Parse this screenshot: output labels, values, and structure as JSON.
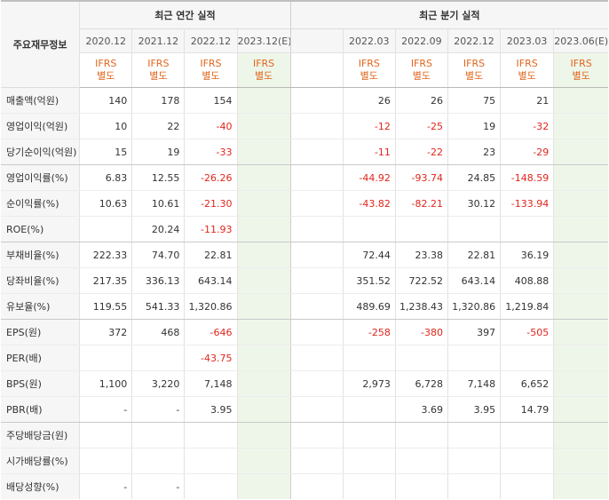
{
  "header": {
    "main_label": "주요재무정보",
    "annual_title": "최근 연간 실적",
    "quarter_title": "최근 분기 실적",
    "annual_periods": [
      "2020.12",
      "2021.12",
      "2022.12",
      "2023.12(E)"
    ],
    "quarter_periods": [
      "",
      "2022.03",
      "2022.09",
      "2022.12",
      "2023.03",
      "2023.06(E)"
    ],
    "basis_line1": "IFRS",
    "basis_line2": "별도"
  },
  "rows": [
    {
      "label": "매출액(억원)",
      "annual": [
        "140",
        "178",
        "154",
        ""
      ],
      "quarter": [
        "",
        "26",
        "26",
        "75",
        "21",
        ""
      ]
    },
    {
      "label": "영업이익(억원)",
      "annual": [
        "10",
        "22",
        "-40",
        ""
      ],
      "quarter": [
        "",
        "-12",
        "-25",
        "19",
        "-32",
        ""
      ]
    },
    {
      "label": "당기순이익(억원)",
      "annual": [
        "15",
        "19",
        "-33",
        ""
      ],
      "quarter": [
        "",
        "-11",
        "-22",
        "23",
        "-29",
        ""
      ]
    },
    {
      "label": "영업이익률(%)",
      "annual": [
        "6.83",
        "12.55",
        "-26.26",
        ""
      ],
      "quarter": [
        "",
        "-44.92",
        "-93.74",
        "24.85",
        "-148.59",
        ""
      ]
    },
    {
      "label": "순이익률(%)",
      "annual": [
        "10.63",
        "10.61",
        "-21.30",
        ""
      ],
      "quarter": [
        "",
        "-43.82",
        "-82.21",
        "30.12",
        "-133.94",
        ""
      ]
    },
    {
      "label": "ROE(%)",
      "annual": [
        "",
        "20.24",
        "-11.93",
        ""
      ],
      "quarter": [
        "",
        "",
        "",
        "",
        "",
        ""
      ]
    },
    {
      "label": "부채비율(%)",
      "annual": [
        "222.33",
        "74.70",
        "22.81",
        ""
      ],
      "quarter": [
        "",
        "72.44",
        "23.38",
        "22.81",
        "36.19",
        ""
      ]
    },
    {
      "label": "당좌비율(%)",
      "annual": [
        "217.35",
        "336.13",
        "643.14",
        ""
      ],
      "quarter": [
        "",
        "351.52",
        "722.52",
        "643.14",
        "408.88",
        ""
      ]
    },
    {
      "label": "유보율(%)",
      "annual": [
        "119.55",
        "541.33",
        "1,320.86",
        ""
      ],
      "quarter": [
        "",
        "489.69",
        "1,238.43",
        "1,320.86",
        "1,219.84",
        ""
      ]
    },
    {
      "label": "EPS(원)",
      "annual": [
        "372",
        "468",
        "-646",
        ""
      ],
      "quarter": [
        "",
        "-258",
        "-380",
        "397",
        "-505",
        ""
      ]
    },
    {
      "label": "PER(배)",
      "annual": [
        "",
        "",
        "-43.75",
        ""
      ],
      "quarter": [
        "",
        "",
        "",
        "",
        "",
        ""
      ]
    },
    {
      "label": "BPS(원)",
      "annual": [
        "1,100",
        "3,220",
        "7,148",
        ""
      ],
      "quarter": [
        "",
        "2,973",
        "6,728",
        "7,148",
        "6,652",
        ""
      ]
    },
    {
      "label": "PBR(배)",
      "annual": [
        "-",
        "-",
        "3.95",
        ""
      ],
      "quarter": [
        "",
        "",
        "3.69",
        "3.95",
        "14.79",
        ""
      ]
    },
    {
      "label": "주당배당금(원)",
      "annual": [
        "",
        "",
        "",
        ""
      ],
      "quarter": [
        "",
        "",
        "",
        "",
        "",
        ""
      ]
    },
    {
      "label": "시가배당률(%)",
      "annual": [
        "",
        "",
        "",
        ""
      ],
      "quarter": [
        "",
        "",
        "",
        "",
        "",
        ""
      ]
    },
    {
      "label": "배당성향(%)",
      "annual": [
        "-",
        "-",
        "",
        ""
      ],
      "quarter": [
        "",
        "",
        "",
        "",
        "",
        ""
      ]
    }
  ],
  "colors": {
    "negative": "#e0261c",
    "basis": "#e0661c",
    "estimate_bg": "#eef6e9"
  }
}
